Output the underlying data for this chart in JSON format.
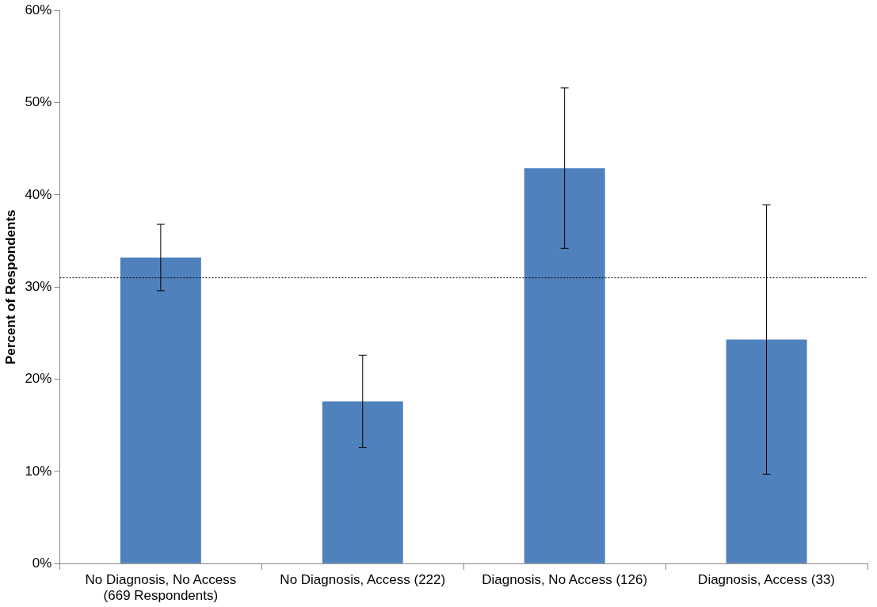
{
  "chart_data": {
    "type": "bar",
    "ylabel": "Percent of Respondents",
    "categories": [
      "No Diagnosis, No Access (669 Respondents)",
      "No Diagnosis, Access (222)",
      "Diagnosis, No Access (126)",
      "Diagnosis, Access (33)"
    ],
    "values": [
      33.2,
      17.6,
      42.9,
      24.3
    ],
    "errors": [
      3.6,
      5.0,
      8.7,
      14.6
    ],
    "color": "#4f81bd",
    "ylim": [
      0,
      60
    ],
    "yticks": [
      {
        "value": 0,
        "label": "0%"
      },
      {
        "value": 10,
        "label": "10%"
      },
      {
        "value": 20,
        "label": "20%"
      },
      {
        "value": 30,
        "label": "30%"
      },
      {
        "value": 40,
        "label": "40%"
      },
      {
        "value": 50,
        "label": "50%"
      },
      {
        "value": 60,
        "label": "60%"
      }
    ],
    "ref_lines": [
      {
        "axis": "y",
        "value": 31.0,
        "label": null,
        "color": "#000000",
        "line_style": "dotted"
      }
    ],
    "grid": false,
    "legend": false
  }
}
